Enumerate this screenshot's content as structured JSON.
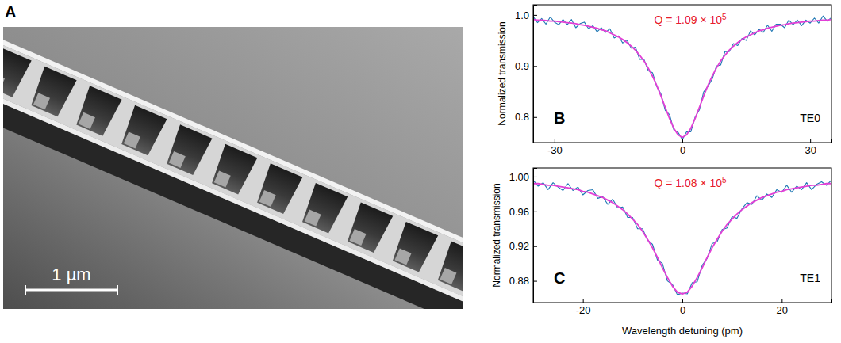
{
  "image_panel": {
    "panel": "A",
    "scale_bar": "1 µm"
  },
  "chart_data": [
    {
      "type": "line",
      "panel": "B",
      "ylabel": "Normalized transmission",
      "annotations": [
        {
          "text": "Q = 1.09 × 10",
          "superscript": "5",
          "color": "#e8202a"
        },
        {
          "text": "TE0"
        }
      ],
      "xlim": [
        -35,
        35
      ],
      "xticks": [
        -30,
        0,
        30
      ],
      "ylim": [
        0.75,
        1.02
      ],
      "yticks": [
        0.8,
        0.9,
        {
          "value": 1,
          "label": "1.0"
        }
      ],
      "x": [
        -35,
        -34,
        -33,
        -32,
        -31,
        -30,
        -29,
        -28,
        -27,
        -26,
        -25,
        -24,
        -23,
        -22,
        -21,
        -20,
        -19,
        -18,
        -17,
        -16,
        -15,
        -14,
        -13,
        -12,
        -11,
        -10,
        -9,
        -8,
        -7,
        -6,
        -5,
        -4,
        -3,
        -2,
        -1,
        0,
        1,
        2,
        3,
        4,
        5,
        6,
        7,
        8,
        9,
        10,
        11,
        12,
        13,
        14,
        15,
        16,
        17,
        18,
        19,
        20,
        21,
        22,
        23,
        24,
        25,
        26,
        27,
        28,
        29,
        30,
        31,
        32,
        33,
        34,
        35
      ],
      "series": [
        {
          "color": "#1f78b4",
          "values": [
            0.997,
            0.985,
            0.993,
            0.982,
            0.996,
            0.986,
            0.981,
            0.991,
            0.981,
            0.991,
            0.975,
            0.983,
            0.986,
            0.973,
            0.979,
            0.967,
            0.975,
            0.966,
            0.973,
            0.955,
            0.959,
            0.945,
            0.951,
            0.935,
            0.937,
            0.913,
            0.913,
            0.891,
            0.887,
            0.86,
            0.845,
            0.813,
            0.805,
            0.775,
            0.77,
            0.756,
            0.771,
            0.771,
            0.8,
            0.814,
            0.849,
            0.86,
            0.874,
            0.9,
            0.902,
            0.928,
            0.928,
            0.944,
            0.94,
            0.954,
            0.95,
            0.969,
            0.961,
            0.972,
            0.966,
            0.98,
            0.968,
            0.982,
            0.982,
            0.975,
            0.99,
            0.981,
            0.99,
            0.979,
            0.99,
            0.984,
            0.994,
            0.984,
            0.998,
            0.988,
            0.995
          ]
        },
        {
          "color": "#e23fd6",
          "values": [
            0.991,
            0.99,
            0.99,
            0.989,
            0.988,
            0.988,
            0.987,
            0.986,
            0.985,
            0.984,
            0.983,
            0.981,
            0.98,
            0.978,
            0.976,
            0.974,
            0.971,
            0.969,
            0.965,
            0.961,
            0.957,
            0.952,
            0.946,
            0.939,
            0.931,
            0.921,
            0.91,
            0.896,
            0.88,
            0.862,
            0.841,
            0.819,
            0.797,
            0.778,
            0.765,
            0.76,
            0.765,
            0.778,
            0.797,
            0.819,
            0.841,
            0.862,
            0.88,
            0.896,
            0.91,
            0.921,
            0.931,
            0.939,
            0.946,
            0.952,
            0.957,
            0.961,
            0.965,
            0.969,
            0.971,
            0.974,
            0.976,
            0.978,
            0.98,
            0.981,
            0.983,
            0.984,
            0.985,
            0.986,
            0.987,
            0.988,
            0.988,
            0.989,
            0.99,
            0.99,
            0.991
          ]
        }
      ]
    },
    {
      "type": "line",
      "panel": "C",
      "ylabel": "Normalized transmission",
      "xlabel": "Wavelength detuning (pm)",
      "annotations": [
        {
          "text": "Q = 1.08 × 10",
          "superscript": "5",
          "color": "#e8202a"
        },
        {
          "text": "TE1"
        }
      ],
      "xlim": [
        -30,
        30
      ],
      "xticks": [
        -20,
        0,
        20
      ],
      "ylim": [
        0.855,
        1.01
      ],
      "yticks": [
        0.88,
        0.92,
        0.96,
        {
          "value": 1,
          "label": "1.00"
        }
      ],
      "x": [
        -30,
        -29,
        -28,
        -27,
        -26,
        -25,
        -24,
        -23,
        -22,
        -21,
        -20,
        -19,
        -18,
        -17,
        -16,
        -15,
        -14,
        -13,
        -12,
        -11,
        -10,
        -9,
        -8,
        -7,
        -6,
        -5,
        -4,
        -3,
        -2,
        -1,
        0,
        1,
        2,
        3,
        4,
        5,
        6,
        7,
        8,
        9,
        10,
        11,
        12,
        13,
        14,
        15,
        16,
        17,
        18,
        19,
        20,
        21,
        22,
        23,
        24,
        25,
        26,
        27,
        28,
        29,
        30
      ],
      "series": [
        {
          "color": "#1f78b4",
          "values": [
            0.996,
            0.989,
            0.993,
            0.985,
            0.993,
            0.988,
            0.984,
            0.992,
            0.984,
            0.988,
            0.979,
            0.984,
            0.985,
            0.975,
            0.977,
            0.968,
            0.974,
            0.964,
            0.965,
            0.953,
            0.953,
            0.94,
            0.94,
            0.927,
            0.922,
            0.904,
            0.9,
            0.88,
            0.876,
            0.864,
            0.866,
            0.865,
            0.878,
            0.879,
            0.898,
            0.906,
            0.923,
            0.925,
            0.939,
            0.941,
            0.954,
            0.952,
            0.963,
            0.97,
            0.968,
            0.978,
            0.973,
            0.98,
            0.976,
            0.985,
            0.982,
            0.99,
            0.982,
            0.989,
            0.985,
            0.993,
            0.985,
            0.991,
            0.994,
            0.99,
            0.996
          ]
        },
        {
          "color": "#e23fd6",
          "values": [
            0.992,
            0.992,
            0.991,
            0.99,
            0.99,
            0.989,
            0.988,
            0.987,
            0.986,
            0.985,
            0.983,
            0.982,
            0.98,
            0.978,
            0.976,
            0.973,
            0.97,
            0.966,
            0.962,
            0.957,
            0.951,
            0.945,
            0.937,
            0.928,
            0.918,
            0.907,
            0.895,
            0.884,
            0.874,
            0.867,
            0.865,
            0.867,
            0.874,
            0.884,
            0.895,
            0.907,
            0.918,
            0.928,
            0.937,
            0.945,
            0.951,
            0.957,
            0.962,
            0.966,
            0.97,
            0.973,
            0.976,
            0.978,
            0.98,
            0.982,
            0.983,
            0.985,
            0.986,
            0.987,
            0.988,
            0.989,
            0.99,
            0.99,
            0.991,
            0.992,
            0.992
          ]
        }
      ]
    }
  ]
}
